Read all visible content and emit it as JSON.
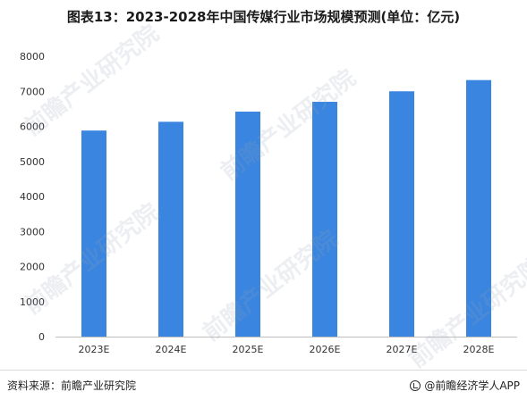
{
  "title": "图表13：2023-2028年中国传媒行业市场规模预测(单位：亿元)",
  "footer": {
    "source": "资料来源：前瞻产业研究院",
    "brand": "@前瞻经济学人APP"
  },
  "watermark": "前瞻产业研究院",
  "colors": {
    "bar": "#3a85e0",
    "axis": "#bfbfbf",
    "text": "#333333"
  },
  "chart_data": {
    "type": "bar",
    "categories": [
      "2023E",
      "2024E",
      "2025E",
      "2026E",
      "2027E",
      "2028E"
    ],
    "values": [
      5880,
      6130,
      6420,
      6700,
      7000,
      7320
    ],
    "title": "",
    "xlabel": "",
    "ylabel": "",
    "ylim": [
      0,
      8000
    ],
    "yticks": [
      0,
      1000,
      2000,
      3000,
      4000,
      5000,
      6000,
      7000,
      8000
    ],
    "grid": false,
    "legend": "none"
  }
}
